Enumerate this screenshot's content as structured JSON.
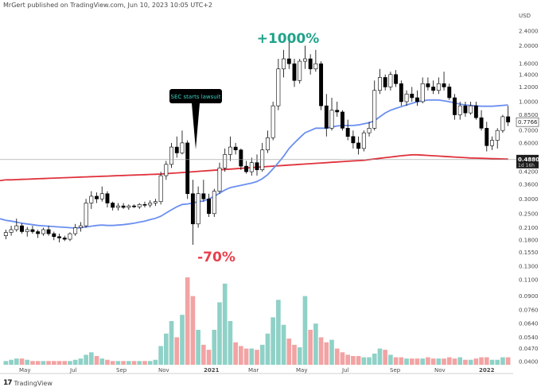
{
  "header": {
    "publisher_text": "MrGert published on TradingView.com, Jun 10, 2023 10:05 UTC+2"
  },
  "currency": "USD",
  "brand": {
    "logo_text": "TradingView"
  },
  "chart_data": {
    "type": "candlestick",
    "scale": "log",
    "grid": false,
    "y_ticks": [
      "2.4000",
      "2.0000",
      "1.6000",
      "1.4000",
      "1.2000",
      "1.0000",
      "0.8500",
      "0.7000",
      "0.6000",
      "0.4200",
      "0.3600",
      "0.3000",
      "0.2500",
      "0.2100",
      "0.1800",
      "0.1550",
      "0.1300",
      "0.1100",
      "0.0900",
      "0.0760",
      "0.0640",
      "0.0540",
      "0.0470",
      "0.0400"
    ],
    "ylim": [
      0.038,
      2.7
    ],
    "x_ticks": [
      "May",
      "Jul",
      "Sep",
      "Nov",
      "2021",
      "Mar",
      "May",
      "Jul",
      "Sep",
      "Nov",
      "2022"
    ],
    "price_labels": {
      "current": {
        "value": "0.7766",
        "color": "#ffffff",
        "text_color": "#222222"
      },
      "crosshair": {
        "value": "0.4880",
        "sub": "1d 16h"
      }
    },
    "annotations": {
      "callout": "SEC starts lawsuit",
      "gain_label": "+1000%",
      "loss_label": "-70%"
    },
    "colors": {
      "up": "#ffffff",
      "down": "#000000",
      "candle_outline": "#000000",
      "volume_up": "#8fd1c7",
      "volume_down": "#f2a3a3",
      "ma_fast": "#6b8ff0",
      "ma_slow": "#e0323c",
      "callout_bg": "#000000",
      "callout_text": "#3fd1c2",
      "gain": "#20a38a",
      "loss": "#e8404c"
    },
    "candles": [
      [
        0.19,
        0.205,
        0.182,
        0.198
      ],
      [
        0.198,
        0.215,
        0.19,
        0.205
      ],
      [
        0.205,
        0.235,
        0.2,
        0.215
      ],
      [
        0.215,
        0.222,
        0.195,
        0.2
      ],
      [
        0.2,
        0.212,
        0.188,
        0.205
      ],
      [
        0.205,
        0.215,
        0.195,
        0.2
      ],
      [
        0.2,
        0.205,
        0.185,
        0.195
      ],
      [
        0.195,
        0.21,
        0.19,
        0.205
      ],
      [
        0.205,
        0.215,
        0.19,
        0.195
      ],
      [
        0.195,
        0.2,
        0.18,
        0.188
      ],
      [
        0.188,
        0.195,
        0.175,
        0.185
      ],
      [
        0.185,
        0.19,
        0.178,
        0.182
      ],
      [
        0.182,
        0.198,
        0.178,
        0.195
      ],
      [
        0.195,
        0.22,
        0.19,
        0.21
      ],
      [
        0.21,
        0.225,
        0.2,
        0.215
      ],
      [
        0.215,
        0.3,
        0.21,
        0.285
      ],
      [
        0.285,
        0.33,
        0.265,
        0.31
      ],
      [
        0.31,
        0.325,
        0.285,
        0.3
      ],
      [
        0.3,
        0.35,
        0.29,
        0.32
      ],
      [
        0.32,
        0.33,
        0.27,
        0.285
      ],
      [
        0.285,
        0.29,
        0.26,
        0.27
      ],
      [
        0.27,
        0.285,
        0.26,
        0.275
      ],
      [
        0.275,
        0.285,
        0.265,
        0.27
      ],
      [
        0.27,
        0.28,
        0.262,
        0.275
      ],
      [
        0.275,
        0.28,
        0.268,
        0.272
      ],
      [
        0.272,
        0.285,
        0.265,
        0.28
      ],
      [
        0.28,
        0.29,
        0.27,
        0.278
      ],
      [
        0.278,
        0.295,
        0.27,
        0.285
      ],
      [
        0.285,
        0.3,
        0.275,
        0.29
      ],
      [
        0.29,
        0.42,
        0.28,
        0.4
      ],
      [
        0.4,
        0.48,
        0.38,
        0.46
      ],
      [
        0.46,
        0.6,
        0.44,
        0.57
      ],
      [
        0.57,
        0.65,
        0.5,
        0.53
      ],
      [
        0.53,
        0.7,
        0.52,
        0.6
      ],
      [
        0.6,
        0.62,
        0.3,
        0.32
      ],
      [
        0.32,
        0.38,
        0.17,
        0.22
      ],
      [
        0.22,
        0.35,
        0.21,
        0.32
      ],
      [
        0.32,
        0.38,
        0.29,
        0.3
      ],
      [
        0.3,
        0.32,
        0.24,
        0.25
      ],
      [
        0.25,
        0.34,
        0.24,
        0.33
      ],
      [
        0.33,
        0.47,
        0.32,
        0.44
      ],
      [
        0.44,
        0.56,
        0.42,
        0.52
      ],
      [
        0.52,
        0.65,
        0.48,
        0.57
      ],
      [
        0.57,
        0.6,
        0.52,
        0.55
      ],
      [
        0.55,
        0.56,
        0.43,
        0.45
      ],
      [
        0.45,
        0.48,
        0.41,
        0.42
      ],
      [
        0.42,
        0.5,
        0.4,
        0.47
      ],
      [
        0.47,
        0.52,
        0.4,
        0.43
      ],
      [
        0.43,
        0.6,
        0.42,
        0.55
      ],
      [
        0.55,
        0.7,
        0.53,
        0.64
      ],
      [
        0.64,
        1.0,
        0.62,
        0.95
      ],
      [
        0.95,
        1.7,
        0.9,
        1.5
      ],
      [
        1.5,
        1.9,
        1.35,
        1.7
      ],
      [
        1.7,
        2.1,
        1.5,
        1.6
      ],
      [
        1.6,
        1.7,
        1.2,
        1.3
      ],
      [
        1.3,
        1.7,
        1.25,
        1.65
      ],
      [
        1.65,
        2.0,
        1.5,
        1.7
      ],
      [
        1.7,
        1.8,
        1.4,
        1.5
      ],
      [
        1.5,
        1.9,
        1.45,
        1.6
      ],
      [
        1.6,
        1.65,
        0.9,
        0.95
      ],
      [
        0.95,
        1.1,
        0.65,
        0.72
      ],
      [
        0.72,
        1.05,
        0.7,
        0.9
      ],
      [
        0.9,
        1.0,
        0.83,
        0.88
      ],
      [
        0.88,
        0.9,
        0.7,
        0.72
      ],
      [
        0.72,
        0.8,
        0.62,
        0.65
      ],
      [
        0.65,
        0.7,
        0.56,
        0.6
      ],
      [
        0.6,
        0.65,
        0.52,
        0.56
      ],
      [
        0.56,
        0.7,
        0.54,
        0.68
      ],
      [
        0.68,
        0.78,
        0.65,
        0.72
      ],
      [
        0.72,
        1.3,
        0.7,
        1.15
      ],
      [
        1.15,
        1.5,
        1.1,
        1.35
      ],
      [
        1.35,
        1.4,
        1.15,
        1.2
      ],
      [
        1.2,
        1.45,
        1.15,
        1.4
      ],
      [
        1.4,
        1.48,
        1.2,
        1.25
      ],
      [
        1.25,
        1.3,
        0.95,
        1.0
      ],
      [
        1.0,
        1.15,
        0.95,
        1.1
      ],
      [
        1.1,
        1.2,
        1.0,
        1.05
      ],
      [
        1.05,
        1.15,
        0.95,
        1.0
      ],
      [
        1.0,
        1.35,
        0.98,
        1.25
      ],
      [
        1.25,
        1.35,
        1.15,
        1.2
      ],
      [
        1.2,
        1.3,
        1.1,
        1.15
      ],
      [
        1.15,
        1.35,
        1.1,
        1.25
      ],
      [
        1.25,
        1.45,
        1.15,
        1.2
      ],
      [
        1.2,
        1.25,
        1.02,
        1.05
      ],
      [
        1.05,
        1.1,
        0.8,
        0.85
      ],
      [
        0.85,
        1.0,
        0.8,
        0.95
      ],
      [
        0.95,
        1.0,
        0.83,
        0.87
      ],
      [
        0.87,
        1.0,
        0.85,
        0.95
      ],
      [
        0.95,
        1.0,
        0.8,
        0.82
      ],
      [
        0.82,
        0.9,
        0.7,
        0.72
      ],
      [
        0.72,
        0.78,
        0.54,
        0.58
      ],
      [
        0.58,
        0.65,
        0.55,
        0.62
      ],
      [
        0.62,
        0.72,
        0.56,
        0.7
      ],
      [
        0.7,
        0.85,
        0.68,
        0.83
      ],
      [
        0.83,
        0.95,
        0.74,
        0.777
      ]
    ],
    "ma_fast": [
      0.23,
      0.228,
      0.225,
      0.222,
      0.22,
      0.218,
      0.216,
      0.215,
      0.214,
      0.213,
      0.212,
      0.211,
      0.21,
      0.209,
      0.21,
      0.212,
      0.214,
      0.216,
      0.217,
      0.216,
      0.216,
      0.217,
      0.218,
      0.22,
      0.222,
      0.225,
      0.228,
      0.232,
      0.236,
      0.242,
      0.252,
      0.262,
      0.272,
      0.28,
      0.282,
      0.285,
      0.29,
      0.292,
      0.3,
      0.31,
      0.322,
      0.335,
      0.345,
      0.35,
      0.355,
      0.36,
      0.365,
      0.372,
      0.385,
      0.405,
      0.435,
      0.47,
      0.51,
      0.56,
      0.6,
      0.64,
      0.68,
      0.7,
      0.72,
      0.72,
      0.72,
      0.73,
      0.74,
      0.745,
      0.745,
      0.745,
      0.75,
      0.76,
      0.77,
      0.79,
      0.83,
      0.87,
      0.9,
      0.92,
      0.94,
      0.96,
      0.98,
      1.0,
      1.01,
      1.02,
      1.02,
      1.02,
      1.01,
      1.0,
      0.985,
      0.97,
      0.96,
      0.955,
      0.95,
      0.945,
      0.945,
      0.945,
      0.95,
      0.955,
      0.96
    ],
    "ma_slow": [
      0.38,
      0.38,
      0.381,
      0.382,
      0.383,
      0.384,
      0.385,
      0.386,
      0.387,
      0.388,
      0.389,
      0.39,
      0.391,
      0.392,
      0.393,
      0.394,
      0.395,
      0.396,
      0.397,
      0.398,
      0.399,
      0.4,
      0.401,
      0.402,
      0.403,
      0.404,
      0.405,
      0.406,
      0.407,
      0.408,
      0.41,
      0.412,
      0.414,
      0.416,
      0.418,
      0.42,
      0.422,
      0.424,
      0.426,
      0.428,
      0.43,
      0.432,
      0.434,
      0.436,
      0.438,
      0.44,
      0.442,
      0.444,
      0.446,
      0.448,
      0.45,
      0.452,
      0.454,
      0.456,
      0.458,
      0.46,
      0.462,
      0.464,
      0.466,
      0.468,
      0.47,
      0.472,
      0.474,
      0.476,
      0.478,
      0.48,
      0.482,
      0.484,
      0.488,
      0.492,
      0.496,
      0.5,
      0.504,
      0.508,
      0.512,
      0.515,
      0.518,
      0.518,
      0.516,
      0.514,
      0.512,
      0.51,
      0.508,
      0.506,
      0.504,
      0.502,
      0.5,
      0.498,
      0.497,
      0.496,
      0.495,
      0.494,
      0.493,
      0.492,
      0.491
    ],
    "volume": [
      0.3,
      0.4,
      0.5,
      0.5,
      0.4,
      0.3,
      0.3,
      0.3,
      0.3,
      0.3,
      0.3,
      0.3,
      0.3,
      0.4,
      0.5,
      0.8,
      1.0,
      0.7,
      0.5,
      0.4,
      0.3,
      0.3,
      0.3,
      0.3,
      0.3,
      0.3,
      0.3,
      0.3,
      0.4,
      1.5,
      2.5,
      3.5,
      2.2,
      4.0,
      7.0,
      5.5,
      2.8,
      1.6,
      1.2,
      2.8,
      5.0,
      6.5,
      3.5,
      1.8,
      1.5,
      1.3,
      1.3,
      1.2,
      1.6,
      2.5,
      3.8,
      5.2,
      3.2,
      2.1,
      1.6,
      1.4,
      5.5,
      2.8,
      3.3,
      2.2,
      1.8,
      2.0,
      1.3,
      1.0,
      0.8,
      0.7,
      0.7,
      0.6,
      0.6,
      0.9,
      1.3,
      1.2,
      0.8,
      0.6,
      0.6,
      0.5,
      0.5,
      0.5,
      0.5,
      0.6,
      0.5,
      0.5,
      0.5,
      0.6,
      0.5,
      0.6,
      0.4,
      0.4,
      0.5,
      0.6,
      0.6,
      0.4,
      0.4,
      0.6,
      0.6
    ]
  }
}
